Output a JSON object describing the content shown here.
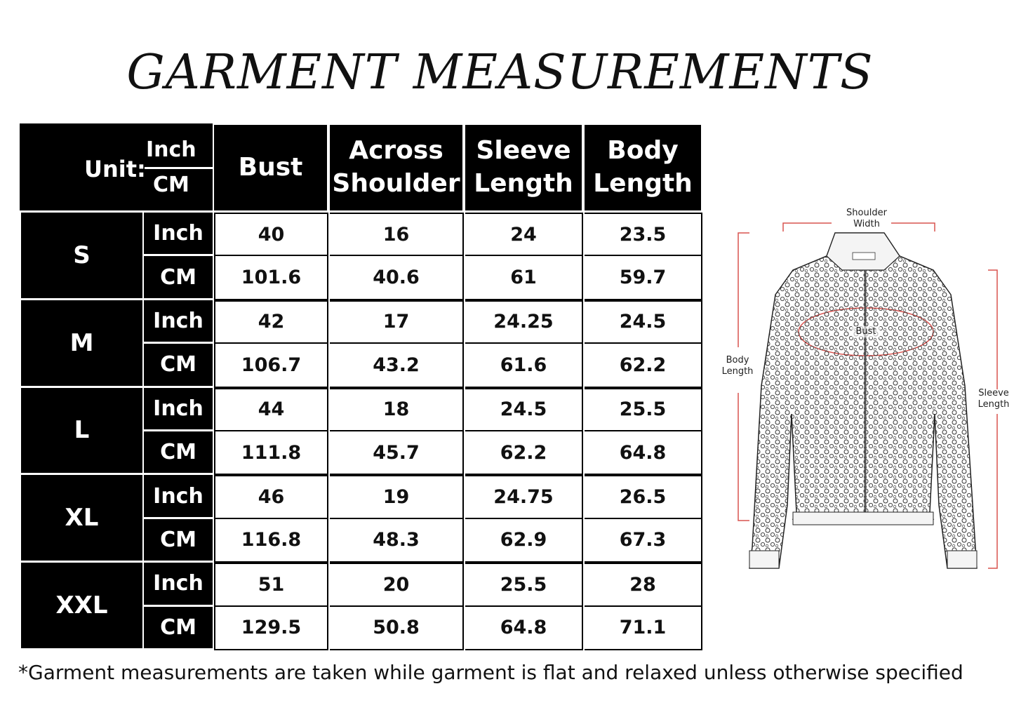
{
  "title": "GARMENT MEASUREMENTS",
  "table": {
    "unit_label": "Unit:",
    "unit_top": "Inch",
    "unit_bottom": "CM",
    "columns": [
      "Bust",
      "Across Shoulder",
      "Sleeve Length",
      "Body Length"
    ],
    "sizes": [
      {
        "size": "S",
        "rows": [
          {
            "unit": "Inch",
            "values": [
              "40",
              "16",
              "24",
              "23.5"
            ]
          },
          {
            "unit": "CM",
            "values": [
              "101.6",
              "40.6",
              "61",
              "59.7"
            ]
          }
        ]
      },
      {
        "size": "M",
        "rows": [
          {
            "unit": "Inch",
            "values": [
              "42",
              "17",
              "24.25",
              "24.5"
            ]
          },
          {
            "unit": "CM",
            "values": [
              "106.7",
              "43.2",
              "61.6",
              "62.2"
            ]
          }
        ]
      },
      {
        "size": "L",
        "rows": [
          {
            "unit": "Inch",
            "values": [
              "44",
              "18",
              "24.5",
              "25.5"
            ]
          },
          {
            "unit": "CM",
            "values": [
              "111.8",
              "45.7",
              "62.2",
              "64.8"
            ]
          }
        ]
      },
      {
        "size": "XL",
        "rows": [
          {
            "unit": "Inch",
            "values": [
              "46",
              "19",
              "24.75",
              "26.5"
            ]
          },
          {
            "unit": "CM",
            "values": [
              "116.8",
              "48.3",
              "62.9",
              "67.3"
            ]
          }
        ]
      },
      {
        "size": "XXL",
        "rows": [
          {
            "unit": "Inch",
            "values": [
              "51",
              "20",
              "25.5",
              "28"
            ]
          },
          {
            "unit": "CM",
            "values": [
              "129.5",
              "50.8",
              "64.8",
              "71.1"
            ]
          }
        ]
      }
    ]
  },
  "diagram": {
    "shoulder_width": "Shoulder Width",
    "bust": "Bust",
    "body_length": "Body Length",
    "sleeve_length": "Sleeve Length",
    "accent_color": "#d9534f"
  },
  "footnote": "*Garment measurements are taken while garment is flat and relaxed unless otherwise specified"
}
